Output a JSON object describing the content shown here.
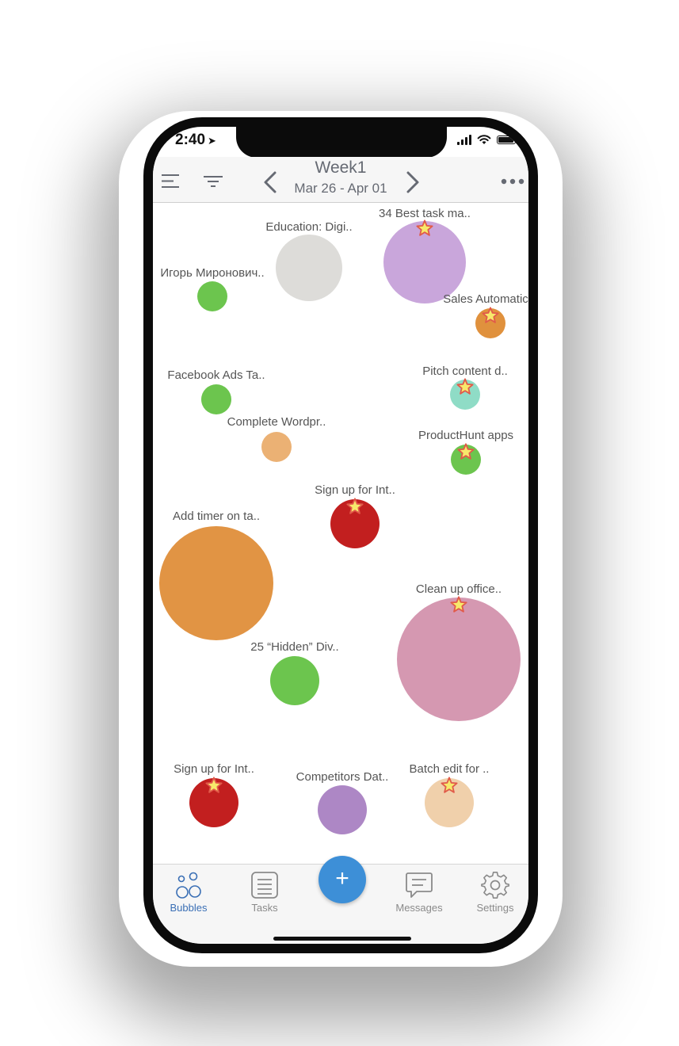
{
  "status": {
    "time": "2:40"
  },
  "header": {
    "week_title": "Week1",
    "date_range": "Mar 26 - Apr 01"
  },
  "bubbles": [
    {
      "label": "Education: Digi..",
      "color": "#dddcd9",
      "starred": false
    },
    {
      "label": "34 Best task ma..",
      "color": "#c9a6db",
      "starred": true
    },
    {
      "label": "Игорь Миронович..",
      "color": "#6cc54e",
      "starred": false
    },
    {
      "label": "Sales Automatic",
      "color": "#e0913d",
      "starred": true
    },
    {
      "label": "Facebook Ads Ta..",
      "color": "#6cc54e",
      "starred": false
    },
    {
      "label": "Pitch content d..",
      "color": "#8fdcc6",
      "starred": true
    },
    {
      "label": "Complete Wordpr..",
      "color": "#ebb174",
      "starred": false
    },
    {
      "label": "ProductHunt apps",
      "color": "#6cc54e",
      "starred": true
    },
    {
      "label": "Sign up for Int..",
      "color": "#c21f1f",
      "starred": true
    },
    {
      "label": "Add timer on ta..",
      "color": "#e19444",
      "starred": false
    },
    {
      "label": "Clean up office..",
      "color": "#d598b1",
      "starred": true
    },
    {
      "label": "25 “Hidden” Div..",
      "color": "#6cc54e",
      "starred": false
    },
    {
      "label": "Sign up for Int..",
      "color": "#c21f1f",
      "starred": true
    },
    {
      "label": "Competitors Dat..",
      "color": "#ad87c5",
      "starred": false
    },
    {
      "label": "Batch edit for ..",
      "color": "#f0d0ab",
      "starred": true
    }
  ],
  "tabbar": {
    "bubbles": "Bubbles",
    "tasks": "Tasks",
    "add": "+",
    "messages": "Messages",
    "settings": "Settings"
  },
  "colors": {
    "accent": "#3d8fd7",
    "active_tab": "#3a6fb5"
  }
}
